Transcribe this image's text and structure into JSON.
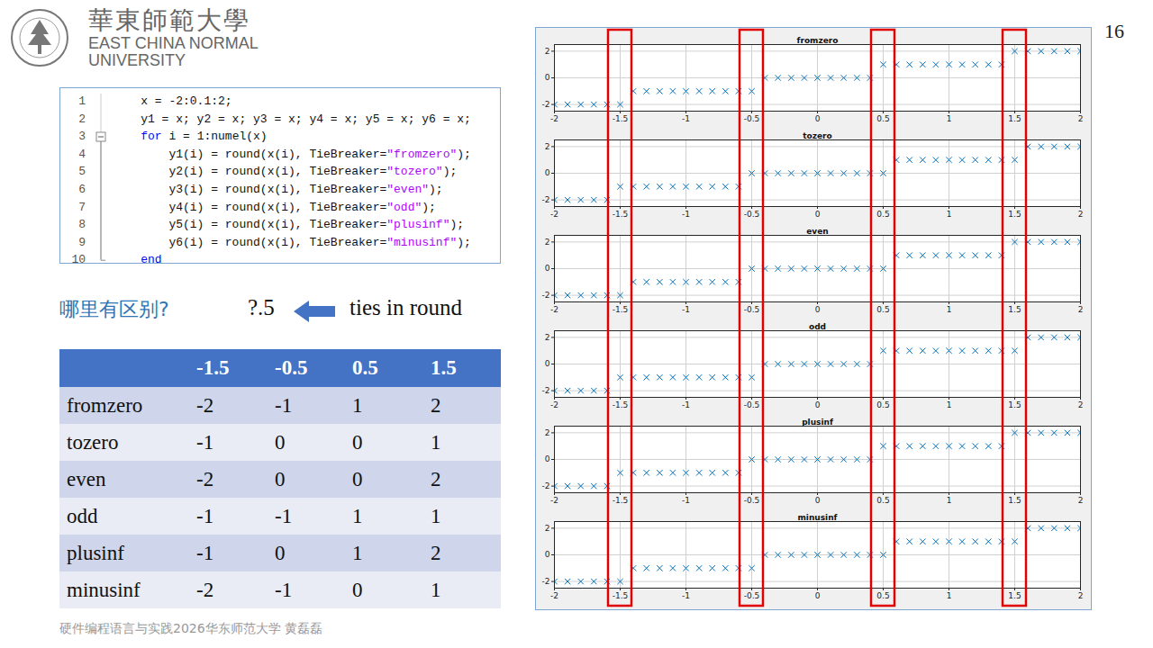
{
  "header": {
    "logo": {
      "chinese": "華東師範大學",
      "english": [
        "EAST CHINA NORMAL",
        "UNIVERSITY"
      ]
    },
    "page_number": 16
  },
  "code": [
    {
      "n": 1,
      "text": "    x = -2:0.1:2;"
    },
    {
      "n": 2,
      "text": "    y1 = x; y2 = x; y3 = x; y4 = x; y5 = x; y6 = x;"
    },
    {
      "n": 3,
      "text": "    for i = 1:numel(x)"
    },
    {
      "n": 4,
      "text": "        y1(i) = round(x(i), TieBreaker=\"fromzero\");"
    },
    {
      "n": 5,
      "text": "        y2(i) = round(x(i), TieBreaker=\"tozero\");"
    },
    {
      "n": 6,
      "text": "        y3(i) = round(x(i), TieBreaker=\"even\");"
    },
    {
      "n": 7,
      "text": "        y4(i) = round(x(i), TieBreaker=\"odd\");"
    },
    {
      "n": 8,
      "text": "        y5(i) = round(x(i), TieBreaker=\"plusinf\");"
    },
    {
      "n": 9,
      "text": "        y6(i) = round(x(i), TieBreaker=\"minusinf\");"
    },
    {
      "n": 10,
      "text": "    end"
    }
  ],
  "question": {
    "text": "哪里有区别?",
    "pattern": "?.5",
    "note": "ties in round"
  },
  "table": {
    "columns": [
      -1.5,
      -0.5,
      0.5,
      1.5
    ],
    "rows": [
      {
        "label": "fromzero",
        "values": [
          -2,
          -1,
          1,
          2
        ]
      },
      {
        "label": "tozero",
        "values": [
          -1,
          0,
          0,
          1
        ]
      },
      {
        "label": "even",
        "values": [
          -2,
          0,
          0,
          2
        ]
      },
      {
        "label": "odd",
        "values": [
          -1,
          -1,
          1,
          1
        ]
      },
      {
        "label": "plusinf",
        "values": [
          -1,
          0,
          1,
          2
        ]
      },
      {
        "label": "minusinf",
        "values": [
          -2,
          -1,
          0,
          1
        ]
      }
    ]
  },
  "watermark": "硬件编程语言与实践2026华东师范大学 黄磊磊",
  "chart_data": [
    {
      "type": "scatter",
      "title": "fromzero",
      "marker": "x",
      "color": "#0072bd",
      "grid": true,
      "xlim": [
        -2,
        2
      ],
      "xticks": [
        -2,
        -1.5,
        -1,
        -0.5,
        0,
        0.5,
        1,
        1.5,
        2
      ],
      "ylim": [
        -2.5,
        2.5
      ],
      "yticks": [
        -2,
        0,
        2
      ],
      "x": [
        -2,
        -1.9,
        -1.8,
        -1.7,
        -1.6,
        -1.5,
        -1.4,
        -1.3,
        -1.2,
        -1.1,
        -1,
        -0.9,
        -0.8,
        -0.7,
        -0.6,
        -0.5,
        -0.4,
        -0.3,
        -0.2,
        -0.1,
        0,
        0.1,
        0.2,
        0.3,
        0.4,
        0.5,
        0.6,
        0.7,
        0.8,
        0.9,
        1,
        1.1,
        1.2,
        1.3,
        1.4,
        1.5,
        1.6,
        1.7,
        1.8,
        1.9,
        2
      ],
      "values": [
        -2,
        -2,
        -2,
        -2,
        -2,
        -2,
        -1,
        -1,
        -1,
        -1,
        -1,
        -1,
        -1,
        -1,
        -1,
        -1,
        0,
        0,
        0,
        0,
        0,
        0,
        0,
        0,
        0,
        1,
        1,
        1,
        1,
        1,
        1,
        1,
        1,
        1,
        1,
        2,
        2,
        2,
        2,
        2,
        2
      ]
    },
    {
      "type": "scatter",
      "title": "tozero",
      "marker": "x",
      "color": "#0072bd",
      "grid": true,
      "xlim": [
        -2,
        2
      ],
      "xticks": [
        -2,
        -1.5,
        -1,
        -0.5,
        0,
        0.5,
        1,
        1.5,
        2
      ],
      "ylim": [
        -2.5,
        2.5
      ],
      "yticks": [
        -2,
        0,
        2
      ],
      "x": [
        -2,
        -1.9,
        -1.8,
        -1.7,
        -1.6,
        -1.5,
        -1.4,
        -1.3,
        -1.2,
        -1.1,
        -1,
        -0.9,
        -0.8,
        -0.7,
        -0.6,
        -0.5,
        -0.4,
        -0.3,
        -0.2,
        -0.1,
        0,
        0.1,
        0.2,
        0.3,
        0.4,
        0.5,
        0.6,
        0.7,
        0.8,
        0.9,
        1,
        1.1,
        1.2,
        1.3,
        1.4,
        1.5,
        1.6,
        1.7,
        1.8,
        1.9,
        2
      ],
      "values": [
        -2,
        -2,
        -2,
        -2,
        -2,
        -1,
        -1,
        -1,
        -1,
        -1,
        -1,
        -1,
        -1,
        -1,
        -1,
        0,
        0,
        0,
        0,
        0,
        0,
        0,
        0,
        0,
        0,
        0,
        1,
        1,
        1,
        1,
        1,
        1,
        1,
        1,
        1,
        1,
        2,
        2,
        2,
        2,
        2
      ]
    },
    {
      "type": "scatter",
      "title": "even",
      "marker": "x",
      "color": "#0072bd",
      "grid": true,
      "xlim": [
        -2,
        2
      ],
      "xticks": [
        -2,
        -1.5,
        -1,
        -0.5,
        0,
        0.5,
        1,
        1.5,
        2
      ],
      "ylim": [
        -2.5,
        2.5
      ],
      "yticks": [
        -2,
        0,
        2
      ],
      "x": [
        -2,
        -1.9,
        -1.8,
        -1.7,
        -1.6,
        -1.5,
        -1.4,
        -1.3,
        -1.2,
        -1.1,
        -1,
        -0.9,
        -0.8,
        -0.7,
        -0.6,
        -0.5,
        -0.4,
        -0.3,
        -0.2,
        -0.1,
        0,
        0.1,
        0.2,
        0.3,
        0.4,
        0.5,
        0.6,
        0.7,
        0.8,
        0.9,
        1,
        1.1,
        1.2,
        1.3,
        1.4,
        1.5,
        1.6,
        1.7,
        1.8,
        1.9,
        2
      ],
      "values": [
        -2,
        -2,
        -2,
        -2,
        -2,
        -2,
        -1,
        -1,
        -1,
        -1,
        -1,
        -1,
        -1,
        -1,
        -1,
        0,
        0,
        0,
        0,
        0,
        0,
        0,
        0,
        0,
        0,
        0,
        1,
        1,
        1,
        1,
        1,
        1,
        1,
        1,
        1,
        2,
        2,
        2,
        2,
        2,
        2
      ]
    },
    {
      "type": "scatter",
      "title": "odd",
      "marker": "x",
      "color": "#0072bd",
      "grid": true,
      "xlim": [
        -2,
        2
      ],
      "xticks": [
        -2,
        -1.5,
        -1,
        -0.5,
        0,
        0.5,
        1,
        1.5,
        2
      ],
      "ylim": [
        -2.5,
        2.5
      ],
      "yticks": [
        -2,
        0,
        2
      ],
      "x": [
        -2,
        -1.9,
        -1.8,
        -1.7,
        -1.6,
        -1.5,
        -1.4,
        -1.3,
        -1.2,
        -1.1,
        -1,
        -0.9,
        -0.8,
        -0.7,
        -0.6,
        -0.5,
        -0.4,
        -0.3,
        -0.2,
        -0.1,
        0,
        0.1,
        0.2,
        0.3,
        0.4,
        0.5,
        0.6,
        0.7,
        0.8,
        0.9,
        1,
        1.1,
        1.2,
        1.3,
        1.4,
        1.5,
        1.6,
        1.7,
        1.8,
        1.9,
        2
      ],
      "values": [
        -2,
        -2,
        -2,
        -2,
        -2,
        -1,
        -1,
        -1,
        -1,
        -1,
        -1,
        -1,
        -1,
        -1,
        -1,
        -1,
        0,
        0,
        0,
        0,
        0,
        0,
        0,
        0,
        0,
        1,
        1,
        1,
        1,
        1,
        1,
        1,
        1,
        1,
        1,
        1,
        2,
        2,
        2,
        2,
        2
      ]
    },
    {
      "type": "scatter",
      "title": "plusinf",
      "marker": "x",
      "color": "#0072bd",
      "grid": true,
      "xlim": [
        -2,
        2
      ],
      "xticks": [
        -2,
        -1.5,
        -1,
        -0.5,
        0,
        0.5,
        1,
        1.5,
        2
      ],
      "ylim": [
        -2.5,
        2.5
      ],
      "yticks": [
        -2,
        0,
        2
      ],
      "x": [
        -2,
        -1.9,
        -1.8,
        -1.7,
        -1.6,
        -1.5,
        -1.4,
        -1.3,
        -1.2,
        -1.1,
        -1,
        -0.9,
        -0.8,
        -0.7,
        -0.6,
        -0.5,
        -0.4,
        -0.3,
        -0.2,
        -0.1,
        0,
        0.1,
        0.2,
        0.3,
        0.4,
        0.5,
        0.6,
        0.7,
        0.8,
        0.9,
        1,
        1.1,
        1.2,
        1.3,
        1.4,
        1.5,
        1.6,
        1.7,
        1.8,
        1.9,
        2
      ],
      "values": [
        -2,
        -2,
        -2,
        -2,
        -2,
        -1,
        -1,
        -1,
        -1,
        -1,
        -1,
        -1,
        -1,
        -1,
        -1,
        0,
        0,
        0,
        0,
        0,
        0,
        0,
        0,
        0,
        0,
        1,
        1,
        1,
        1,
        1,
        1,
        1,
        1,
        1,
        1,
        2,
        2,
        2,
        2,
        2,
        2
      ]
    },
    {
      "type": "scatter",
      "title": "minusinf",
      "marker": "x",
      "color": "#0072bd",
      "grid": true,
      "xlim": [
        -2,
        2
      ],
      "xticks": [
        -2,
        -1.5,
        -1,
        -0.5,
        0,
        0.5,
        1,
        1.5,
        2
      ],
      "ylim": [
        -2.5,
        2.5
      ],
      "yticks": [
        -2,
        0,
        2
      ],
      "x": [
        -2,
        -1.9,
        -1.8,
        -1.7,
        -1.6,
        -1.5,
        -1.4,
        -1.3,
        -1.2,
        -1.1,
        -1,
        -0.9,
        -0.8,
        -0.7,
        -0.6,
        -0.5,
        -0.4,
        -0.3,
        -0.2,
        -0.1,
        0,
        0.1,
        0.2,
        0.3,
        0.4,
        0.5,
        0.6,
        0.7,
        0.8,
        0.9,
        1,
        1.1,
        1.2,
        1.3,
        1.4,
        1.5,
        1.6,
        1.7,
        1.8,
        1.9,
        2
      ],
      "values": [
        -2,
        -2,
        -2,
        -2,
        -2,
        -2,
        -1,
        -1,
        -1,
        -1,
        -1,
        -1,
        -1,
        -1,
        -1,
        -1,
        0,
        0,
        0,
        0,
        0,
        0,
        0,
        0,
        0,
        0,
        1,
        1,
        1,
        1,
        1,
        1,
        1,
        1,
        1,
        1,
        2,
        2,
        2,
        2,
        2
      ]
    }
  ]
}
